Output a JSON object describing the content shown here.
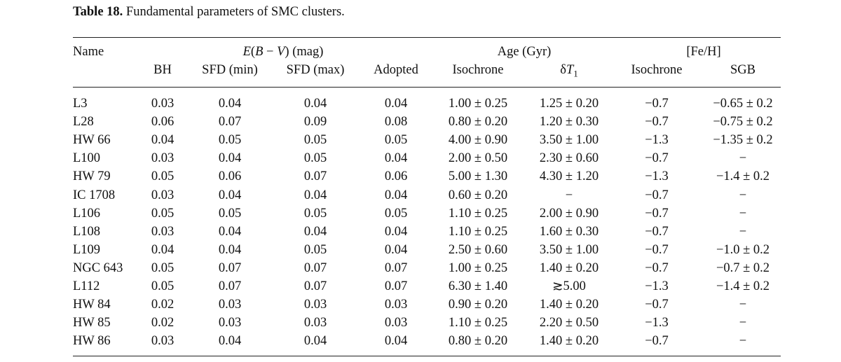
{
  "caption": {
    "label": "Table 18.",
    "text": "Fundamental parameters of SMC clusters."
  },
  "header": {
    "name": "Name",
    "ebv_group": "E(B − V) (mag)",
    "age_group": "Age (Gyr)",
    "feh_group": "[Fe/H]",
    "columns": [
      "BH",
      "SFD (min)",
      "SFD (max)",
      "Adopted",
      "Isochrone",
      "δT1",
      "Isochrone",
      "SGB"
    ]
  },
  "rows": [
    [
      "L3",
      "0.03",
      "0.04",
      "0.04",
      "0.04",
      "1.00 ± 0.25",
      "1.25 ± 0.20",
      "−0.7",
      "−0.65 ± 0.2"
    ],
    [
      "L28",
      "0.06",
      "0.07",
      "0.09",
      "0.08",
      "0.80 ± 0.20",
      "1.20 ± 0.30",
      "−0.7",
      "−0.75 ± 0.2"
    ],
    [
      "HW 66",
      "0.04",
      "0.05",
      "0.05",
      "0.05",
      "4.00 ± 0.90",
      "3.50 ± 1.00",
      "−1.3",
      "−1.35 ± 0.2"
    ],
    [
      "L100",
      "0.03",
      "0.04",
      "0.05",
      "0.04",
      "2.00 ± 0.50",
      "2.30 ± 0.60",
      "−0.7",
      "−"
    ],
    [
      "HW 79",
      "0.05",
      "0.06",
      "0.07",
      "0.06",
      "5.00 ± 1.30",
      "4.30 ± 1.20",
      "−1.3",
      "−1.4 ± 0.2"
    ],
    [
      "IC 1708",
      "0.03",
      "0.04",
      "0.04",
      "0.04",
      "0.60 ± 0.20",
      "−",
      "−0.7",
      "−"
    ],
    [
      "L106",
      "0.05",
      "0.05",
      "0.05",
      "0.05",
      "1.10 ± 0.25",
      "2.00 ± 0.90",
      "−0.7",
      "−"
    ],
    [
      "L108",
      "0.03",
      "0.04",
      "0.04",
      "0.04",
      "1.10 ± 0.25",
      "1.60 ± 0.30",
      "−0.7",
      "−"
    ],
    [
      "L109",
      "0.04",
      "0.04",
      "0.05",
      "0.04",
      "2.50 ± 0.60",
      "3.50 ± 1.00",
      "−0.7",
      "−1.0 ± 0.2"
    ],
    [
      "NGC 643",
      "0.05",
      "0.07",
      "0.07",
      "0.07",
      "1.00 ± 0.25",
      "1.40 ± 0.20",
      "−0.7",
      "−0.7 ± 0.2"
    ],
    [
      "L112",
      "0.05",
      "0.07",
      "0.07",
      "0.07",
      "6.30 ± 1.40",
      "≳5.00",
      "−1.3",
      "−1.4 ± 0.2"
    ],
    [
      "HW 84",
      "0.02",
      "0.03",
      "0.03",
      "0.03",
      "0.90 ± 0.20",
      "1.40 ± 0.20",
      "−0.7",
      "−"
    ],
    [
      "HW 85",
      "0.02",
      "0.03",
      "0.03",
      "0.03",
      "1.10 ± 0.25",
      "2.20 ± 0.50",
      "−1.3",
      "−"
    ],
    [
      "HW 86",
      "0.03",
      "0.04",
      "0.04",
      "0.04",
      "0.80 ± 0.20",
      "1.40 ± 0.20",
      "−0.7",
      "−"
    ]
  ]
}
